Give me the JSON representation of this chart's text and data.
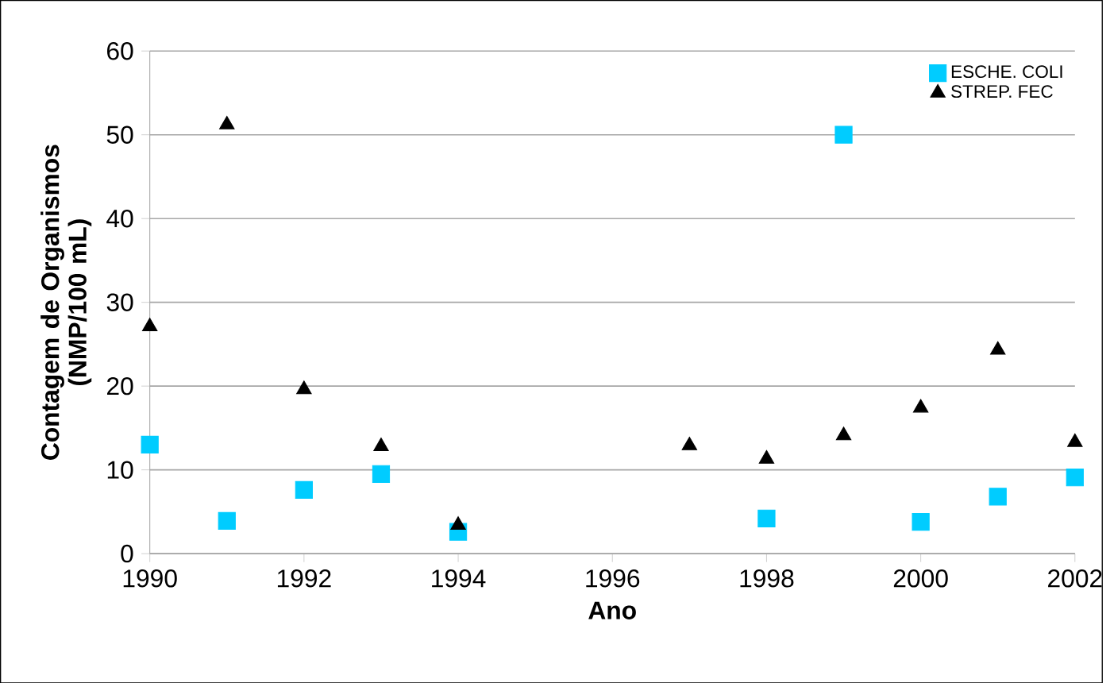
{
  "chart_data": {
    "type": "scatter",
    "xlabel": "Ano",
    "ylabel": "Contagem de Organismos (NMP/100 mL)",
    "xlim": [
      1990,
      2002
    ],
    "xticks": [
      1990,
      1992,
      1994,
      1996,
      1998,
      2000,
      2002
    ],
    "ylim": [
      0,
      60
    ],
    "yticks": [
      0,
      10,
      20,
      30,
      40,
      50,
      60
    ],
    "grid": "y",
    "legend": "top right",
    "series": [
      {
        "name": "ESCHE. COLI",
        "color": "#00ccff",
        "marker": "square",
        "x": [
          1990,
          1991,
          1992,
          1993,
          1994,
          1998,
          1999,
          2000,
          2001,
          2002
        ],
        "values": [
          13.0,
          3.9,
          7.6,
          9.5,
          2.6,
          4.2,
          50,
          3.8,
          6.8,
          9.1
        ]
      },
      {
        "name": "STREP. FEC",
        "color": "#000000",
        "marker": "triangle",
        "x": [
          1990,
          1991,
          1992,
          1993,
          1994,
          1997,
          1998,
          1999,
          2000,
          2001,
          2002
        ],
        "values": [
          27.1,
          51.2,
          19.6,
          12.8,
          3.4,
          12.9,
          11.3,
          14.1,
          17.4,
          24.3,
          13.3
        ]
      }
    ]
  }
}
